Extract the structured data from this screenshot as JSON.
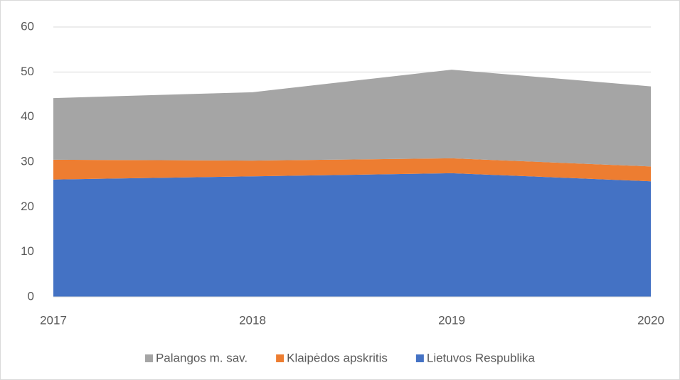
{
  "chart_data": {
    "type": "stacked_area",
    "categories": [
      "2017",
      "2018",
      "2019",
      "2020"
    ],
    "series": [
      {
        "name": "Lietuvos Respublika",
        "color": "#4472c4",
        "values": [
          26.1,
          26.8,
          27.5,
          25.7
        ]
      },
      {
        "name": "Klaipėdos apskritis",
        "color": "#ed7d31",
        "values": [
          4.4,
          3.5,
          3.3,
          3.3
        ]
      },
      {
        "name": "Palangos m. sav.",
        "color": "#a5a5a5",
        "values": [
          13.7,
          15.2,
          19.7,
          17.8
        ]
      }
    ],
    "ylim": [
      0,
      60
    ],
    "yticks": [
      0,
      10,
      20,
      30,
      40,
      50,
      60
    ],
    "grid": true,
    "legend": "bottom"
  }
}
